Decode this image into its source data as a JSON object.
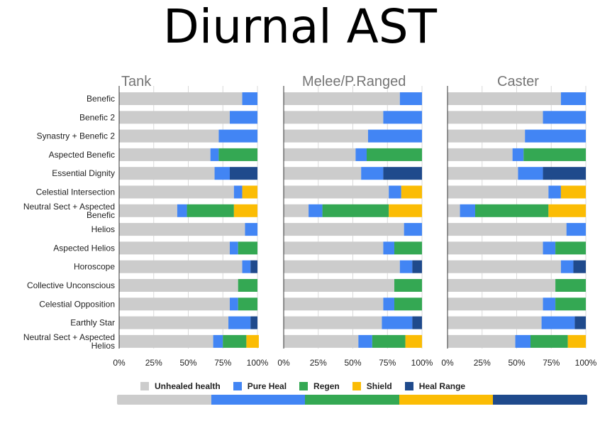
{
  "title": "Diurnal AST",
  "colors": {
    "unhealed": "#cccccc",
    "pure_heal": "#4285f4",
    "regen": "#34a853",
    "shield": "#fbbc04",
    "heal_range": "#1f4a8c"
  },
  "legend": [
    {
      "label": "Unhealed health",
      "color": "#cccccc"
    },
    {
      "label": "Pure Heal",
      "color": "#4285f4"
    },
    {
      "label": "Regen",
      "color": "#34a853"
    },
    {
      "label": "Shield",
      "color": "#fbbc04"
    },
    {
      "label": "Heal Range",
      "color": "#1f4a8c"
    }
  ],
  "chart_data": {
    "type": "bar",
    "orientation": "horizontal",
    "stacked": true,
    "title": "Diurnal AST",
    "categories": [
      "Benefic",
      "Benefic 2",
      "Synastry + Benefic 2",
      "Aspected Benefic",
      "Essential Dignity",
      "Celestial Intersection",
      "Neutral Sect + Aspected Benefic",
      "Helios",
      "Aspected Helios",
      "Horoscope",
      "Collective Unconscious",
      "Celestial Opposition",
      "Earthly Star",
      "Neutral Sect + Aspected Helios"
    ],
    "series_names": [
      "Unhealed health",
      "Pure Heal",
      "Regen",
      "Shield",
      "Heal Range"
    ],
    "xlim": [
      0,
      100
    ],
    "x_ticks": [
      "0%",
      "25%",
      "50%",
      "75%",
      "100%"
    ],
    "grid": true,
    "legend_position": "bottom",
    "panels": [
      {
        "name": "Tank",
        "values": [
          [
            89,
            11,
            0,
            0,
            0
          ],
          [
            80,
            20,
            0,
            0,
            0
          ],
          [
            72,
            28,
            0,
            0,
            0
          ],
          [
            66,
            6,
            28,
            0,
            0
          ],
          [
            69,
            11,
            0,
            0,
            20
          ],
          [
            83,
            6,
            0,
            11,
            0
          ],
          [
            42,
            7,
            34,
            17,
            0
          ],
          [
            91,
            9,
            0,
            0,
            0
          ],
          [
            80,
            6,
            14,
            0,
            0
          ],
          [
            89,
            6,
            0,
            0,
            5
          ],
          [
            86,
            0,
            14,
            0,
            0
          ],
          [
            80,
            6,
            14,
            0,
            0
          ],
          [
            79,
            16,
            0,
            0,
            5
          ],
          [
            68,
            7,
            17,
            9,
            0
          ]
        ]
      },
      {
        "name": "Melee/P.Ranged",
        "values": [
          [
            84,
            16,
            0,
            0,
            0
          ],
          [
            72,
            28,
            0,
            0,
            0
          ],
          [
            61,
            39,
            0,
            0,
            0
          ],
          [
            52,
            8,
            40,
            0,
            0
          ],
          [
            56,
            16,
            0,
            0,
            28
          ],
          [
            76,
            9,
            0,
            15,
            0
          ],
          [
            18,
            10,
            48,
            24,
            0
          ],
          [
            87,
            13,
            0,
            0,
            0
          ],
          [
            72,
            8,
            20,
            0,
            0
          ],
          [
            84,
            9,
            0,
            0,
            7
          ],
          [
            80,
            0,
            20,
            0,
            0
          ],
          [
            72,
            8,
            20,
            0,
            0
          ],
          [
            71,
            22,
            0,
            0,
            7
          ],
          [
            54,
            10,
            24,
            12,
            0
          ]
        ]
      },
      {
        "name": "Caster",
        "values": [
          [
            82,
            18,
            0,
            0,
            0
          ],
          [
            69,
            31,
            0,
            0,
            0
          ],
          [
            56,
            44,
            0,
            0,
            0
          ],
          [
            47,
            8,
            45,
            0,
            0
          ],
          [
            51,
            18,
            0,
            0,
            31
          ],
          [
            73,
            9,
            0,
            18,
            0
          ],
          [
            9,
            11,
            53,
            27,
            0
          ],
          [
            86,
            14,
            0,
            0,
            0
          ],
          [
            69,
            9,
            22,
            0,
            0
          ],
          [
            82,
            9,
            0,
            0,
            9
          ],
          [
            78,
            0,
            22,
            0,
            0
          ],
          [
            69,
            9,
            22,
            0,
            0
          ],
          [
            68,
            24,
            0,
            0,
            8
          ],
          [
            49,
            11,
            27,
            13,
            0
          ]
        ]
      }
    ]
  }
}
